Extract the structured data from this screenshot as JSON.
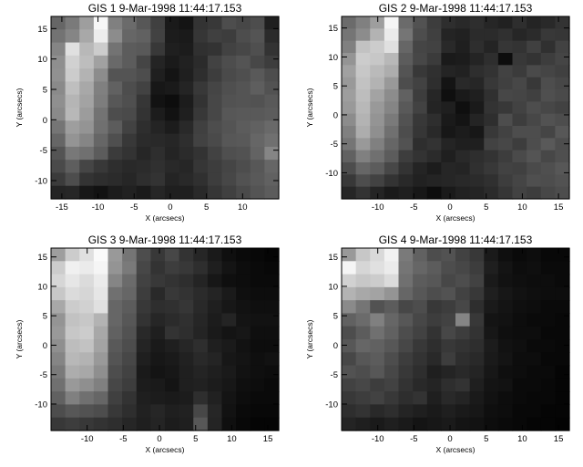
{
  "chart_data": [
    {
      "type": "heatmap",
      "title": "GIS 1  9-Mar-1998 11:44:17.153",
      "xlabel": "X (arcsecs)",
      "ylabel": "Y (arcsecs)",
      "xlim": [
        -16.5,
        15
      ],
      "ylim": [
        -13,
        17
      ],
      "xticks": [
        -15,
        -10,
        -5,
        0,
        5,
        10
      ],
      "yticks": [
        -10,
        -5,
        0,
        5,
        10,
        15
      ],
      "colormap": "grayscale",
      "grid": [
        [
          0.4,
          0.48,
          0.62,
          0.97,
          0.5,
          0.42,
          0.34,
          0.25,
          0.1,
          0.08,
          0.2,
          0.22,
          0.3,
          0.28,
          0.3,
          0.12
        ],
        [
          0.45,
          0.52,
          0.66,
          0.93,
          0.55,
          0.4,
          0.38,
          0.26,
          0.11,
          0.1,
          0.21,
          0.25,
          0.24,
          0.3,
          0.33,
          0.17
        ],
        [
          0.52,
          0.88,
          0.72,
          0.8,
          0.45,
          0.36,
          0.35,
          0.22,
          0.12,
          0.11,
          0.19,
          0.2,
          0.26,
          0.28,
          0.31,
          0.2
        ],
        [
          0.56,
          0.82,
          0.74,
          0.63,
          0.41,
          0.36,
          0.27,
          0.14,
          0.1,
          0.13,
          0.17,
          0.26,
          0.3,
          0.33,
          0.28,
          0.24
        ],
        [
          0.57,
          0.8,
          0.7,
          0.55,
          0.33,
          0.33,
          0.3,
          0.12,
          0.08,
          0.12,
          0.18,
          0.24,
          0.29,
          0.31,
          0.35,
          0.3
        ],
        [
          0.54,
          0.75,
          0.66,
          0.5,
          0.38,
          0.3,
          0.26,
          0.09,
          0.1,
          0.14,
          0.22,
          0.27,
          0.31,
          0.33,
          0.37,
          0.32
        ],
        [
          0.56,
          0.71,
          0.64,
          0.49,
          0.34,
          0.31,
          0.21,
          0.07,
          0.05,
          0.11,
          0.2,
          0.28,
          0.32,
          0.33,
          0.32,
          0.35
        ],
        [
          0.54,
          0.72,
          0.61,
          0.45,
          0.3,
          0.29,
          0.2,
          0.11,
          0.07,
          0.12,
          0.22,
          0.28,
          0.34,
          0.35,
          0.35,
          0.36
        ],
        [
          0.46,
          0.62,
          0.58,
          0.44,
          0.36,
          0.26,
          0.18,
          0.14,
          0.11,
          0.16,
          0.25,
          0.3,
          0.33,
          0.36,
          0.38,
          0.41
        ],
        [
          0.4,
          0.58,
          0.52,
          0.4,
          0.31,
          0.22,
          0.17,
          0.16,
          0.15,
          0.18,
          0.26,
          0.29,
          0.34,
          0.35,
          0.4,
          0.44
        ],
        [
          0.33,
          0.47,
          0.44,
          0.36,
          0.23,
          0.2,
          0.15,
          0.18,
          0.14,
          0.17,
          0.2,
          0.26,
          0.31,
          0.32,
          0.39,
          0.52
        ],
        [
          0.29,
          0.37,
          0.27,
          0.22,
          0.18,
          0.16,
          0.17,
          0.19,
          0.16,
          0.15,
          0.21,
          0.24,
          0.27,
          0.3,
          0.34,
          0.4
        ],
        [
          0.23,
          0.3,
          0.2,
          0.18,
          0.17,
          0.15,
          0.18,
          0.2,
          0.14,
          0.16,
          0.19,
          0.24,
          0.28,
          0.32,
          0.35,
          0.38
        ],
        [
          0.14,
          0.15,
          0.09,
          0.07,
          0.11,
          0.13,
          0.1,
          0.15,
          0.12,
          0.12,
          0.16,
          0.21,
          0.25,
          0.29,
          0.33,
          0.36
        ]
      ]
    },
    {
      "type": "heatmap",
      "title": "GIS 2  9-Mar-1998 11:44:17.153",
      "xlabel": "X (arcsecs)",
      "ylabel": "Y (arcsecs)",
      "xlim": [
        -15,
        16.5
      ],
      "ylim": [
        -14.5,
        17
      ],
      "xticks": [
        -10,
        -5,
        0,
        5,
        10,
        15
      ],
      "yticks": [
        -10,
        -5,
        0,
        5,
        10,
        15
      ],
      "colormap": "grayscale",
      "grid": [
        [
          0.42,
          0.5,
          0.62,
          0.96,
          0.42,
          0.32,
          0.24,
          0.18,
          0.16,
          0.18,
          0.15,
          0.13,
          0.18,
          0.14,
          0.16,
          0.2
        ],
        [
          0.46,
          0.55,
          0.7,
          0.92,
          0.46,
          0.3,
          0.25,
          0.14,
          0.13,
          0.17,
          0.17,
          0.19,
          0.15,
          0.17,
          0.22,
          0.21
        ],
        [
          0.5,
          0.76,
          0.8,
          0.88,
          0.4,
          0.27,
          0.26,
          0.16,
          0.12,
          0.18,
          0.14,
          0.21,
          0.2,
          0.25,
          0.19,
          0.26
        ],
        [
          0.58,
          0.8,
          0.78,
          0.72,
          0.36,
          0.28,
          0.23,
          0.1,
          0.11,
          0.14,
          0.18,
          0.05,
          0.22,
          0.2,
          0.24,
          0.27
        ],
        [
          0.63,
          0.78,
          0.73,
          0.68,
          0.33,
          0.22,
          0.19,
          0.14,
          0.13,
          0.18,
          0.2,
          0.26,
          0.23,
          0.29,
          0.27,
          0.25
        ],
        [
          0.6,
          0.76,
          0.7,
          0.6,
          0.3,
          0.26,
          0.18,
          0.08,
          0.16,
          0.15,
          0.22,
          0.25,
          0.28,
          0.22,
          0.3,
          0.28
        ],
        [
          0.62,
          0.74,
          0.64,
          0.55,
          0.38,
          0.24,
          0.15,
          0.06,
          0.1,
          0.12,
          0.19,
          0.28,
          0.27,
          0.25,
          0.31,
          0.29
        ],
        [
          0.6,
          0.72,
          0.6,
          0.52,
          0.35,
          0.26,
          0.14,
          0.12,
          0.06,
          0.1,
          0.2,
          0.22,
          0.26,
          0.3,
          0.28,
          0.26
        ],
        [
          0.55,
          0.7,
          0.58,
          0.48,
          0.32,
          0.22,
          0.18,
          0.1,
          0.08,
          0.14,
          0.18,
          0.3,
          0.24,
          0.28,
          0.32,
          0.3
        ],
        [
          0.5,
          0.68,
          0.56,
          0.44,
          0.3,
          0.21,
          0.16,
          0.09,
          0.11,
          0.09,
          0.22,
          0.26,
          0.3,
          0.3,
          0.27,
          0.34
        ],
        [
          0.46,
          0.6,
          0.5,
          0.4,
          0.32,
          0.18,
          0.2,
          0.14,
          0.12,
          0.12,
          0.26,
          0.28,
          0.24,
          0.3,
          0.35,
          0.3
        ],
        [
          0.38,
          0.5,
          0.44,
          0.36,
          0.24,
          0.2,
          0.17,
          0.12,
          0.16,
          0.18,
          0.2,
          0.24,
          0.29,
          0.33,
          0.28,
          0.31
        ],
        [
          0.3,
          0.4,
          0.36,
          0.28,
          0.2,
          0.14,
          0.11,
          0.15,
          0.14,
          0.19,
          0.22,
          0.26,
          0.25,
          0.29,
          0.31,
          0.34
        ],
        [
          0.22,
          0.3,
          0.26,
          0.2,
          0.16,
          0.13,
          0.14,
          0.15,
          0.16,
          0.17,
          0.19,
          0.24,
          0.27,
          0.31,
          0.3,
          0.32
        ],
        [
          0.15,
          0.2,
          0.14,
          0.1,
          0.12,
          0.09,
          0.05,
          0.1,
          0.13,
          0.14,
          0.17,
          0.21,
          0.26,
          0.24,
          0.28,
          0.3
        ]
      ]
    },
    {
      "type": "heatmap",
      "title": "GIS 3  9-Mar-1998 11:44:17.153",
      "xlabel": "X (arcsecs)",
      "ylabel": "Y (arcsecs)",
      "xlim": [
        -15,
        16.5
      ],
      "ylim": [
        -14.5,
        16.5
      ],
      "xticks": [
        -10,
        -5,
        0,
        5,
        10,
        15
      ],
      "yticks": [
        -10,
        -5,
        0,
        5,
        10,
        15
      ],
      "colormap": "grayscale",
      "grid": [
        [
          0.62,
          0.8,
          0.88,
          0.98,
          0.6,
          0.46,
          0.3,
          0.22,
          0.28,
          0.2,
          0.15,
          0.1,
          0.06,
          0.04,
          0.03,
          0.02
        ],
        [
          0.8,
          0.94,
          0.92,
          0.96,
          0.58,
          0.48,
          0.28,
          0.2,
          0.24,
          0.22,
          0.18,
          0.12,
          0.08,
          0.05,
          0.04,
          0.03
        ],
        [
          0.84,
          0.9,
          0.86,
          0.92,
          0.52,
          0.42,
          0.26,
          0.22,
          0.2,
          0.18,
          0.14,
          0.09,
          0.06,
          0.05,
          0.04,
          0.04
        ],
        [
          0.78,
          0.86,
          0.84,
          0.9,
          0.44,
          0.4,
          0.24,
          0.16,
          0.22,
          0.2,
          0.17,
          0.14,
          0.1,
          0.06,
          0.05,
          0.05
        ],
        [
          0.66,
          0.8,
          0.82,
          0.88,
          0.4,
          0.36,
          0.22,
          0.18,
          0.19,
          0.21,
          0.16,
          0.12,
          0.09,
          0.07,
          0.06,
          0.06
        ],
        [
          0.58,
          0.76,
          0.78,
          0.7,
          0.4,
          0.34,
          0.2,
          0.15,
          0.17,
          0.19,
          0.15,
          0.11,
          0.14,
          0.08,
          0.07,
          0.07
        ],
        [
          0.6,
          0.78,
          0.8,
          0.66,
          0.38,
          0.32,
          0.16,
          0.12,
          0.2,
          0.18,
          0.14,
          0.1,
          0.08,
          0.09,
          0.06,
          0.06
        ],
        [
          0.56,
          0.74,
          0.76,
          0.64,
          0.35,
          0.3,
          0.14,
          0.1,
          0.12,
          0.15,
          0.18,
          0.12,
          0.1,
          0.07,
          0.05,
          0.05
        ],
        [
          0.52,
          0.72,
          0.7,
          0.6,
          0.33,
          0.28,
          0.12,
          0.09,
          0.1,
          0.13,
          0.16,
          0.14,
          0.09,
          0.08,
          0.06,
          0.07
        ],
        [
          0.48,
          0.68,
          0.66,
          0.56,
          0.3,
          0.26,
          0.1,
          0.08,
          0.09,
          0.12,
          0.14,
          0.12,
          0.1,
          0.07,
          0.06,
          0.05
        ],
        [
          0.44,
          0.6,
          0.56,
          0.5,
          0.28,
          0.24,
          0.11,
          0.1,
          0.08,
          0.12,
          0.13,
          0.11,
          0.09,
          0.06,
          0.05,
          0.04
        ],
        [
          0.38,
          0.5,
          0.44,
          0.4,
          0.25,
          0.2,
          0.12,
          0.11,
          0.1,
          0.11,
          0.18,
          0.13,
          0.08,
          0.05,
          0.04,
          0.04
        ],
        [
          0.3,
          0.34,
          0.32,
          0.3,
          0.22,
          0.18,
          0.13,
          0.15,
          0.12,
          0.13,
          0.28,
          0.15,
          0.07,
          0.04,
          0.03,
          0.03
        ],
        [
          0.22,
          0.24,
          0.22,
          0.2,
          0.18,
          0.15,
          0.12,
          0.14,
          0.11,
          0.12,
          0.34,
          0.14,
          0.06,
          0.03,
          0.02,
          0.02
        ]
      ]
    },
    {
      "type": "heatmap",
      "title": "GIS 4  9-Mar-1998 11:44:17.153",
      "xlabel": "X (arcsecs)",
      "ylabel": "Y (arcsecs)",
      "xlim": [
        -15,
        16.5
      ],
      "ylim": [
        -14.5,
        16.5
      ],
      "xticks": [
        -10,
        -5,
        0,
        5,
        10,
        15
      ],
      "yticks": [
        -10,
        -5,
        0,
        5,
        10,
        15
      ],
      "colormap": "grayscale",
      "grid": [
        [
          0.6,
          0.78,
          0.85,
          0.95,
          0.48,
          0.38,
          0.3,
          0.32,
          0.26,
          0.22,
          0.1,
          0.06,
          0.04,
          0.05,
          0.03,
          0.03
        ],
        [
          0.96,
          0.84,
          0.88,
          0.92,
          0.46,
          0.4,
          0.36,
          0.3,
          0.28,
          0.24,
          0.12,
          0.08,
          0.05,
          0.06,
          0.04,
          0.04
        ],
        [
          0.82,
          0.78,
          0.8,
          0.86,
          0.44,
          0.36,
          0.34,
          0.28,
          0.3,
          0.26,
          0.1,
          0.07,
          0.06,
          0.05,
          0.05,
          0.04
        ],
        [
          0.7,
          0.66,
          0.64,
          0.58,
          0.4,
          0.34,
          0.3,
          0.32,
          0.26,
          0.22,
          0.12,
          0.09,
          0.07,
          0.06,
          0.05,
          0.05
        ],
        [
          0.54,
          0.46,
          0.32,
          0.36,
          0.28,
          0.3,
          0.22,
          0.24,
          0.28,
          0.18,
          0.1,
          0.08,
          0.06,
          0.05,
          0.04,
          0.04
        ],
        [
          0.38,
          0.42,
          0.5,
          0.4,
          0.34,
          0.28,
          0.24,
          0.26,
          0.52,
          0.22,
          0.08,
          0.07,
          0.05,
          0.04,
          0.04,
          0.03
        ],
        [
          0.3,
          0.36,
          0.44,
          0.38,
          0.3,
          0.26,
          0.2,
          0.28,
          0.24,
          0.2,
          0.09,
          0.06,
          0.05,
          0.05,
          0.03,
          0.03
        ],
        [
          0.34,
          0.4,
          0.38,
          0.34,
          0.28,
          0.22,
          0.18,
          0.22,
          0.2,
          0.18,
          0.11,
          0.07,
          0.06,
          0.04,
          0.04,
          0.03
        ],
        [
          0.28,
          0.34,
          0.36,
          0.3,
          0.24,
          0.2,
          0.16,
          0.24,
          0.18,
          0.16,
          0.1,
          0.08,
          0.05,
          0.05,
          0.03,
          0.03
        ],
        [
          0.32,
          0.3,
          0.34,
          0.28,
          0.22,
          0.18,
          0.12,
          0.14,
          0.16,
          0.14,
          0.09,
          0.06,
          0.05,
          0.04,
          0.04,
          0.02
        ],
        [
          0.26,
          0.28,
          0.24,
          0.26,
          0.2,
          0.16,
          0.14,
          0.18,
          0.2,
          0.12,
          0.08,
          0.07,
          0.04,
          0.04,
          0.03,
          0.02
        ],
        [
          0.22,
          0.24,
          0.26,
          0.22,
          0.18,
          0.2,
          0.12,
          0.16,
          0.14,
          0.1,
          0.07,
          0.05,
          0.04,
          0.03,
          0.03,
          0.02
        ],
        [
          0.18,
          0.2,
          0.16,
          0.18,
          0.14,
          0.12,
          0.1,
          0.12,
          0.1,
          0.09,
          0.06,
          0.05,
          0.03,
          0.03,
          0.02,
          0.02
        ],
        [
          0.14,
          0.12,
          0.1,
          0.12,
          0.1,
          0.08,
          0.09,
          0.1,
          0.08,
          0.07,
          0.05,
          0.04,
          0.03,
          0.02,
          0.02,
          0.01
        ]
      ]
    }
  ]
}
